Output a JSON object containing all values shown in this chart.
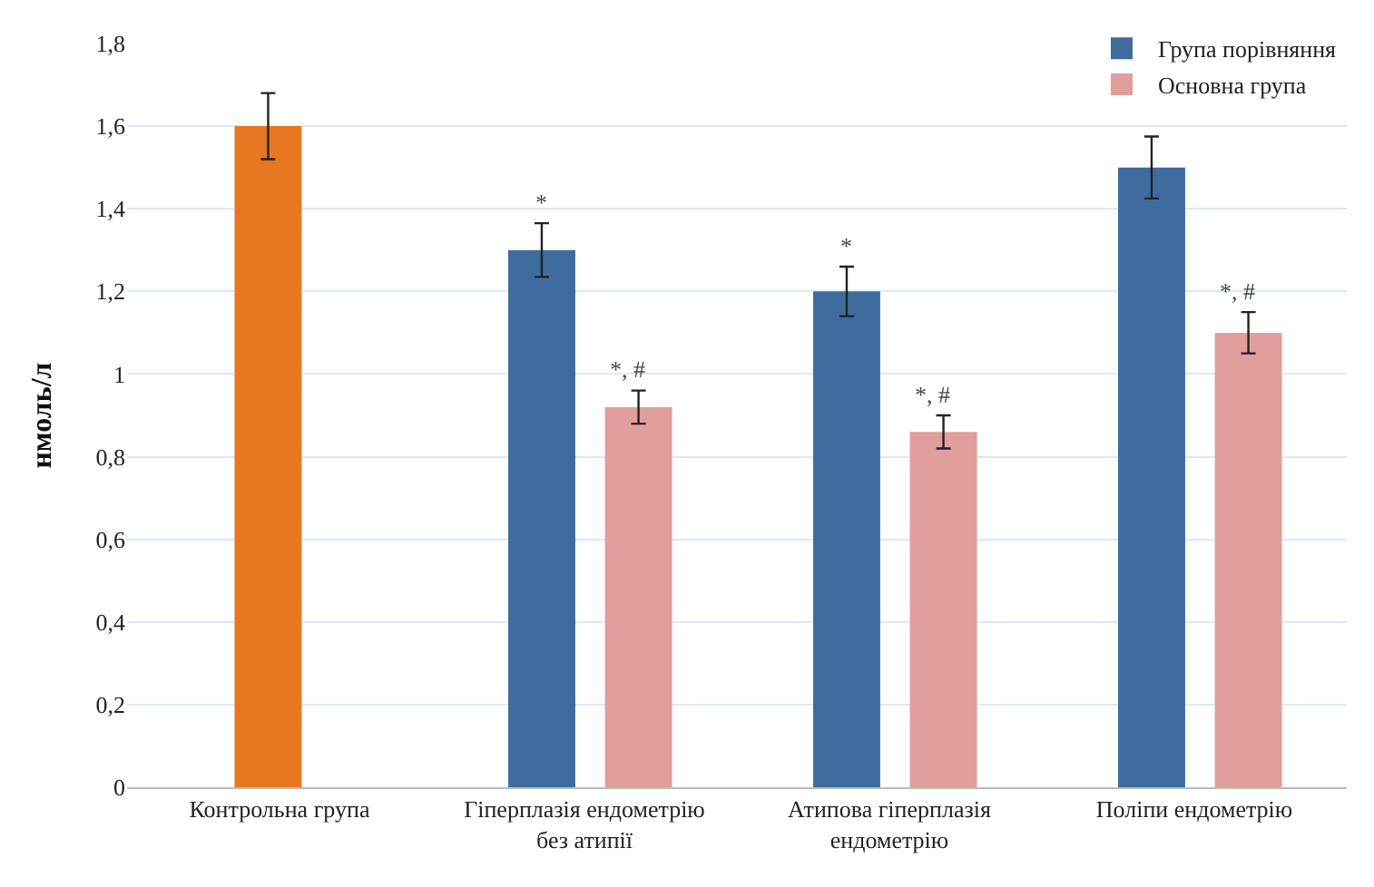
{
  "chart_data": {
    "type": "bar",
    "ylabel": "нмоль/л",
    "categories": [
      "Контрольна група",
      "Гіперплазія ендометрію\nбез атипії",
      "Атипова гіперплазія\nендометрію",
      "Поліпи ендометрію"
    ],
    "series": [
      {
        "color": "#e87722",
        "values": [
          1.6,
          null,
          null,
          null
        ],
        "errors": [
          0.08,
          null,
          null,
          null
        ]
      },
      {
        "name": "Група порівняння",
        "color": "#3f6c9e",
        "values": [
          null,
          1.3,
          1.2,
          1.5
        ],
        "errors": [
          null,
          0.065,
          0.06,
          0.075
        ],
        "value_labels": [
          null,
          "*",
          "*",
          null
        ]
      },
      {
        "name": "Основна група",
        "color": "#e09e9c",
        "values": [
          null,
          0.92,
          0.86,
          1.1
        ],
        "errors": [
          null,
          0.04,
          0.04,
          0.05
        ],
        "value_labels": [
          null,
          "*, #",
          "*, #",
          "*, #"
        ]
      }
    ],
    "ylim": [
      0,
      1.8
    ],
    "yticks": [
      0,
      {
        "value": 0.2,
        "label": "0,2"
      },
      {
        "value": 0.4,
        "label": "0,4"
      },
      {
        "value": 0.6,
        "label": "0,6"
      },
      {
        "value": 0.8,
        "label": "0,8"
      },
      1,
      {
        "value": 1.2,
        "label": "1,2"
      },
      {
        "value": 1.4,
        "label": "1,4"
      },
      {
        "value": 1.6,
        "label": "1,6"
      },
      {
        "value": 1.8,
        "label": "1,8"
      }
    ],
    "grid": "y",
    "legend": "top right"
  }
}
